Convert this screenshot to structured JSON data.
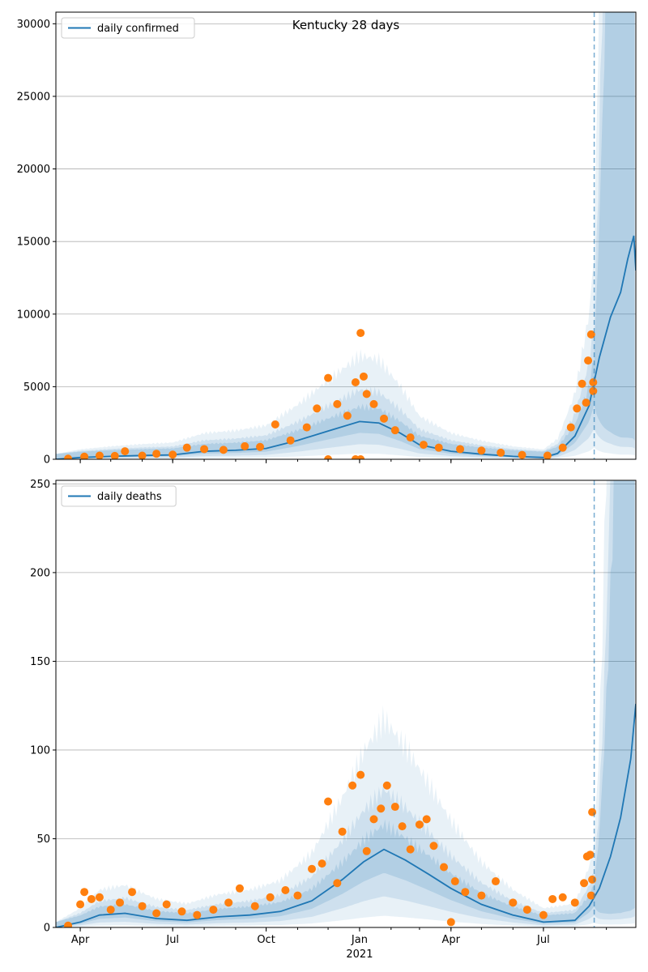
{
  "chart_data": [
    {
      "type": "line",
      "title": "Kentucky 28 days",
      "xlabel": "",
      "ylabel": "",
      "x_range": [
        "2020-03-08",
        "2021-09-30"
      ],
      "ylim": [
        0,
        30800
      ],
      "yticks": [
        0,
        5000,
        10000,
        15000,
        20000,
        25000,
        30000
      ],
      "xticks": [
        {
          "date": "2020-04-01",
          "label": "Apr"
        },
        {
          "date": "2020-07-01",
          "label": "Jul"
        },
        {
          "date": "2020-10-01",
          "label": "Oct"
        },
        {
          "date": "2021-01-01",
          "label": "Jan"
        },
        {
          "date": "2021-04-01",
          "label": "Apr"
        },
        {
          "date": "2021-07-01",
          "label": "Jul"
        }
      ],
      "show_xtick_labels": false,
      "grid": "horizontal",
      "legend": "top-left",
      "forecast_start": "2021-08-20",
      "series": [
        {
          "name": "daily confirmed",
          "kind": "model-line",
          "color": "#1f77b4",
          "points": [
            [
              "2020-03-08",
              0
            ],
            [
              "2020-04-01",
              120
            ],
            [
              "2020-05-01",
              200
            ],
            [
              "2020-06-01",
              260
            ],
            [
              "2020-07-01",
              300
            ],
            [
              "2020-08-01",
              550
            ],
            [
              "2020-09-01",
              620
            ],
            [
              "2020-10-01",
              750
            ],
            [
              "2020-11-01",
              1300
            ],
            [
              "2020-12-01",
              1950
            ],
            [
              "2021-01-01",
              2600
            ],
            [
              "2021-01-20",
              2500
            ],
            [
              "2021-02-10",
              1800
            ],
            [
              "2021-03-01",
              1000
            ],
            [
              "2021-04-01",
              550
            ],
            [
              "2021-05-01",
              350
            ],
            [
              "2021-06-01",
              200
            ],
            [
              "2021-07-01",
              120
            ],
            [
              "2021-07-15",
              400
            ],
            [
              "2021-08-01",
              1600
            ],
            [
              "2021-08-15",
              3700
            ],
            [
              "2021-08-25",
              7000
            ],
            [
              "2021-09-05",
              9800
            ],
            [
              "2021-09-15",
              11500
            ],
            [
              "2021-09-22",
              13800
            ],
            [
              "2021-09-28",
              15400
            ],
            [
              "2021-09-30",
              13000
            ]
          ]
        },
        {
          "name": "",
          "kind": "observed",
          "color": "#ff7f0e",
          "points": [
            [
              "2020-03-20",
              40
            ],
            [
              "2020-04-05",
              180
            ],
            [
              "2020-04-20",
              250
            ],
            [
              "2020-05-05",
              230
            ],
            [
              "2020-05-15",
              550
            ],
            [
              "2020-06-01",
              250
            ],
            [
              "2020-06-15",
              380
            ],
            [
              "2020-07-01",
              320
            ],
            [
              "2020-07-15",
              800
            ],
            [
              "2020-08-01",
              700
            ],
            [
              "2020-08-20",
              650
            ],
            [
              "2020-09-10",
              900
            ],
            [
              "2020-09-25",
              850
            ],
            [
              "2020-10-10",
              2400
            ],
            [
              "2020-10-25",
              1300
            ],
            [
              "2020-11-10",
              2200
            ],
            [
              "2020-11-20",
              3500
            ],
            [
              "2020-12-01",
              5600
            ],
            [
              "2020-12-10",
              3800
            ],
            [
              "2020-12-20",
              3000
            ],
            [
              "2020-12-28",
              5300
            ],
            [
              "2021-01-02",
              8700
            ],
            [
              "2021-01-05",
              5700
            ],
            [
              "2021-01-08",
              4500
            ],
            [
              "2021-01-15",
              3800
            ],
            [
              "2021-01-25",
              2800
            ],
            [
              "2021-02-05",
              2000
            ],
            [
              "2021-02-20",
              1500
            ],
            [
              "2021-03-05",
              1000
            ],
            [
              "2021-03-20",
              800
            ],
            [
              "2021-04-10",
              700
            ],
            [
              "2021-05-01",
              600
            ],
            [
              "2021-05-20",
              450
            ],
            [
              "2021-06-10",
              300
            ],
            [
              "2021-07-05",
              250
            ],
            [
              "2021-07-20",
              800
            ],
            [
              "2021-07-28",
              2200
            ],
            [
              "2021-08-03",
              3500
            ],
            [
              "2021-08-08",
              5200
            ],
            [
              "2021-08-12",
              3900
            ],
            [
              "2021-08-14",
              6800
            ],
            [
              "2021-08-17",
              8600
            ],
            [
              "2021-08-19",
              5300
            ],
            [
              "2021-08-19",
              4700
            ],
            [
              "2020-12-28",
              0
            ],
            [
              "2021-01-02",
              0
            ],
            [
              "2020-12-01",
              0
            ]
          ]
        }
      ]
    },
    {
      "type": "line",
      "title": "",
      "xlabel": "2021",
      "ylabel": "",
      "x_range": [
        "2020-03-08",
        "2021-09-30"
      ],
      "ylim": [
        0,
        252
      ],
      "yticks": [
        0,
        50,
        100,
        150,
        200,
        250
      ],
      "xticks": [
        {
          "date": "2020-04-01",
          "label": "Apr"
        },
        {
          "date": "2020-07-01",
          "label": "Jul"
        },
        {
          "date": "2020-10-01",
          "label": "Oct"
        },
        {
          "date": "2021-01-01",
          "label": "Jan"
        },
        {
          "date": "2021-04-01",
          "label": "Apr"
        },
        {
          "date": "2021-07-01",
          "label": "Jul"
        }
      ],
      "show_xtick_labels": true,
      "grid": "horizontal",
      "legend": "top-left",
      "forecast_start": "2021-08-20",
      "series": [
        {
          "name": "daily deaths",
          "kind": "model-line",
          "color": "#1f77b4",
          "points": [
            [
              "2020-03-08",
              0
            ],
            [
              "2020-04-01",
              3
            ],
            [
              "2020-04-20",
              7
            ],
            [
              "2020-05-15",
              8
            ],
            [
              "2020-06-15",
              5
            ],
            [
              "2020-07-15",
              4
            ],
            [
              "2020-08-15",
              6
            ],
            [
              "2020-09-15",
              7
            ],
            [
              "2020-10-15",
              9
            ],
            [
              "2020-11-15",
              15
            ],
            [
              "2020-12-15",
              27
            ],
            [
              "2021-01-05",
              37
            ],
            [
              "2021-01-25",
              44
            ],
            [
              "2021-02-15",
              38
            ],
            [
              "2021-03-10",
              30
            ],
            [
              "2021-04-01",
              22
            ],
            [
              "2021-05-01",
              13
            ],
            [
              "2021-06-01",
              7
            ],
            [
              "2021-07-01",
              3
            ],
            [
              "2021-08-01",
              4
            ],
            [
              "2021-08-15",
              12
            ],
            [
              "2021-08-25",
              22
            ],
            [
              "2021-09-05",
              40
            ],
            [
              "2021-09-15",
              62
            ],
            [
              "2021-09-25",
              95
            ],
            [
              "2021-09-30",
              126
            ]
          ]
        },
        {
          "name": "",
          "kind": "observed",
          "color": "#ff7f0e",
          "points": [
            [
              "2020-03-20",
              1
            ],
            [
              "2020-04-01",
              13
            ],
            [
              "2020-04-05",
              20
            ],
            [
              "2020-04-12",
              16
            ],
            [
              "2020-04-20",
              17
            ],
            [
              "2020-05-01",
              10
            ],
            [
              "2020-05-10",
              14
            ],
            [
              "2020-05-22",
              20
            ],
            [
              "2020-06-01",
              12
            ],
            [
              "2020-06-15",
              8
            ],
            [
              "2020-06-25",
              13
            ],
            [
              "2020-07-10",
              9
            ],
            [
              "2020-07-25",
              7
            ],
            [
              "2020-08-10",
              10
            ],
            [
              "2020-08-25",
              14
            ],
            [
              "2020-09-05",
              22
            ],
            [
              "2020-09-20",
              12
            ],
            [
              "2020-10-05",
              17
            ],
            [
              "2020-10-20",
              21
            ],
            [
              "2020-11-01",
              18
            ],
            [
              "2020-11-15",
              33
            ],
            [
              "2020-11-25",
              36
            ],
            [
              "2020-12-01",
              71
            ],
            [
              "2020-12-10",
              25
            ],
            [
              "2020-12-15",
              54
            ],
            [
              "2020-12-25",
              80
            ],
            [
              "2021-01-02",
              86
            ],
            [
              "2021-01-08",
              43
            ],
            [
              "2021-01-15",
              61
            ],
            [
              "2021-01-22",
              67
            ],
            [
              "2021-01-28",
              80
            ],
            [
              "2021-02-05",
              68
            ],
            [
              "2021-02-12",
              57
            ],
            [
              "2021-02-20",
              44
            ],
            [
              "2021-03-01",
              58
            ],
            [
              "2021-03-08",
              61
            ],
            [
              "2021-03-15",
              46
            ],
            [
              "2021-03-25",
              34
            ],
            [
              "2021-04-05",
              26
            ],
            [
              "2021-04-15",
              20
            ],
            [
              "2021-05-01",
              18
            ],
            [
              "2021-05-15",
              26
            ],
            [
              "2021-06-01",
              14
            ],
            [
              "2021-06-15",
              10
            ],
            [
              "2021-07-01",
              7
            ],
            [
              "2021-07-10",
              16
            ],
            [
              "2021-07-20",
              17
            ],
            [
              "2021-08-01",
              14
            ],
            [
              "2021-08-10",
              25
            ],
            [
              "2021-08-13",
              40
            ],
            [
              "2021-08-16",
              41
            ],
            [
              "2021-08-18",
              65
            ],
            [
              "2021-08-18",
              27
            ],
            [
              "2021-08-17",
              18
            ],
            [
              "2021-04-01",
              3
            ]
          ]
        }
      ]
    }
  ]
}
